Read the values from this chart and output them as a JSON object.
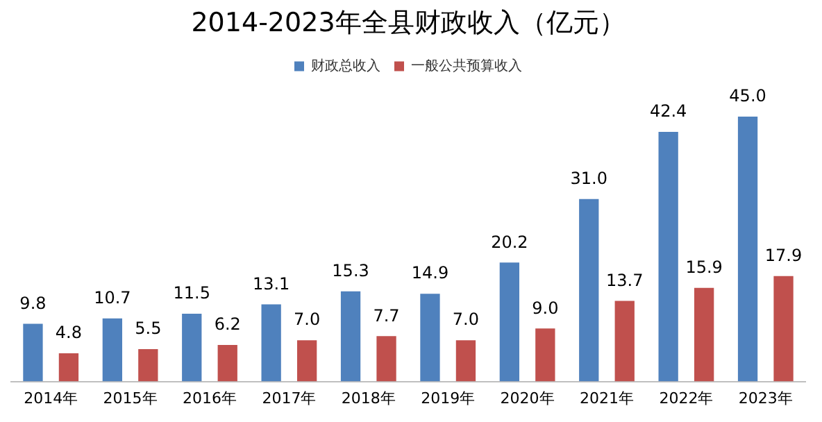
{
  "chart_data": {
    "type": "bar",
    "title": "2014-2023年全县财政收入（亿元）",
    "categories": [
      "2014年",
      "2015年",
      "2016年",
      "2017年",
      "2018年",
      "2019年",
      "2020年",
      "2021年",
      "2022年",
      "2023年"
    ],
    "series": [
      {
        "name": "财政总收入",
        "color": "#4f81bd",
        "values": [
          9.8,
          10.7,
          11.5,
          13.1,
          15.3,
          14.9,
          20.2,
          31,
          42.4,
          45
        ],
        "value_labels": [
          "9.8",
          "10.7",
          "11.5",
          "13.1",
          "15.3",
          "14.9",
          "20.2",
          "31.0",
          "42.4",
          "45.0"
        ]
      },
      {
        "name": "一般公共预算收入",
        "color": "#c0504d",
        "values": [
          4.8,
          5.5,
          6.2,
          7,
          7.7,
          7,
          9,
          13.7,
          15.9,
          17.9
        ],
        "value_labels": [
          "4.8",
          "5.5",
          "6.2",
          "7.0",
          "7.7",
          "7.0",
          "9.0",
          "13.7",
          "15.9",
          "17.9"
        ]
      }
    ],
    "legend": "top",
    "grid": false
  }
}
